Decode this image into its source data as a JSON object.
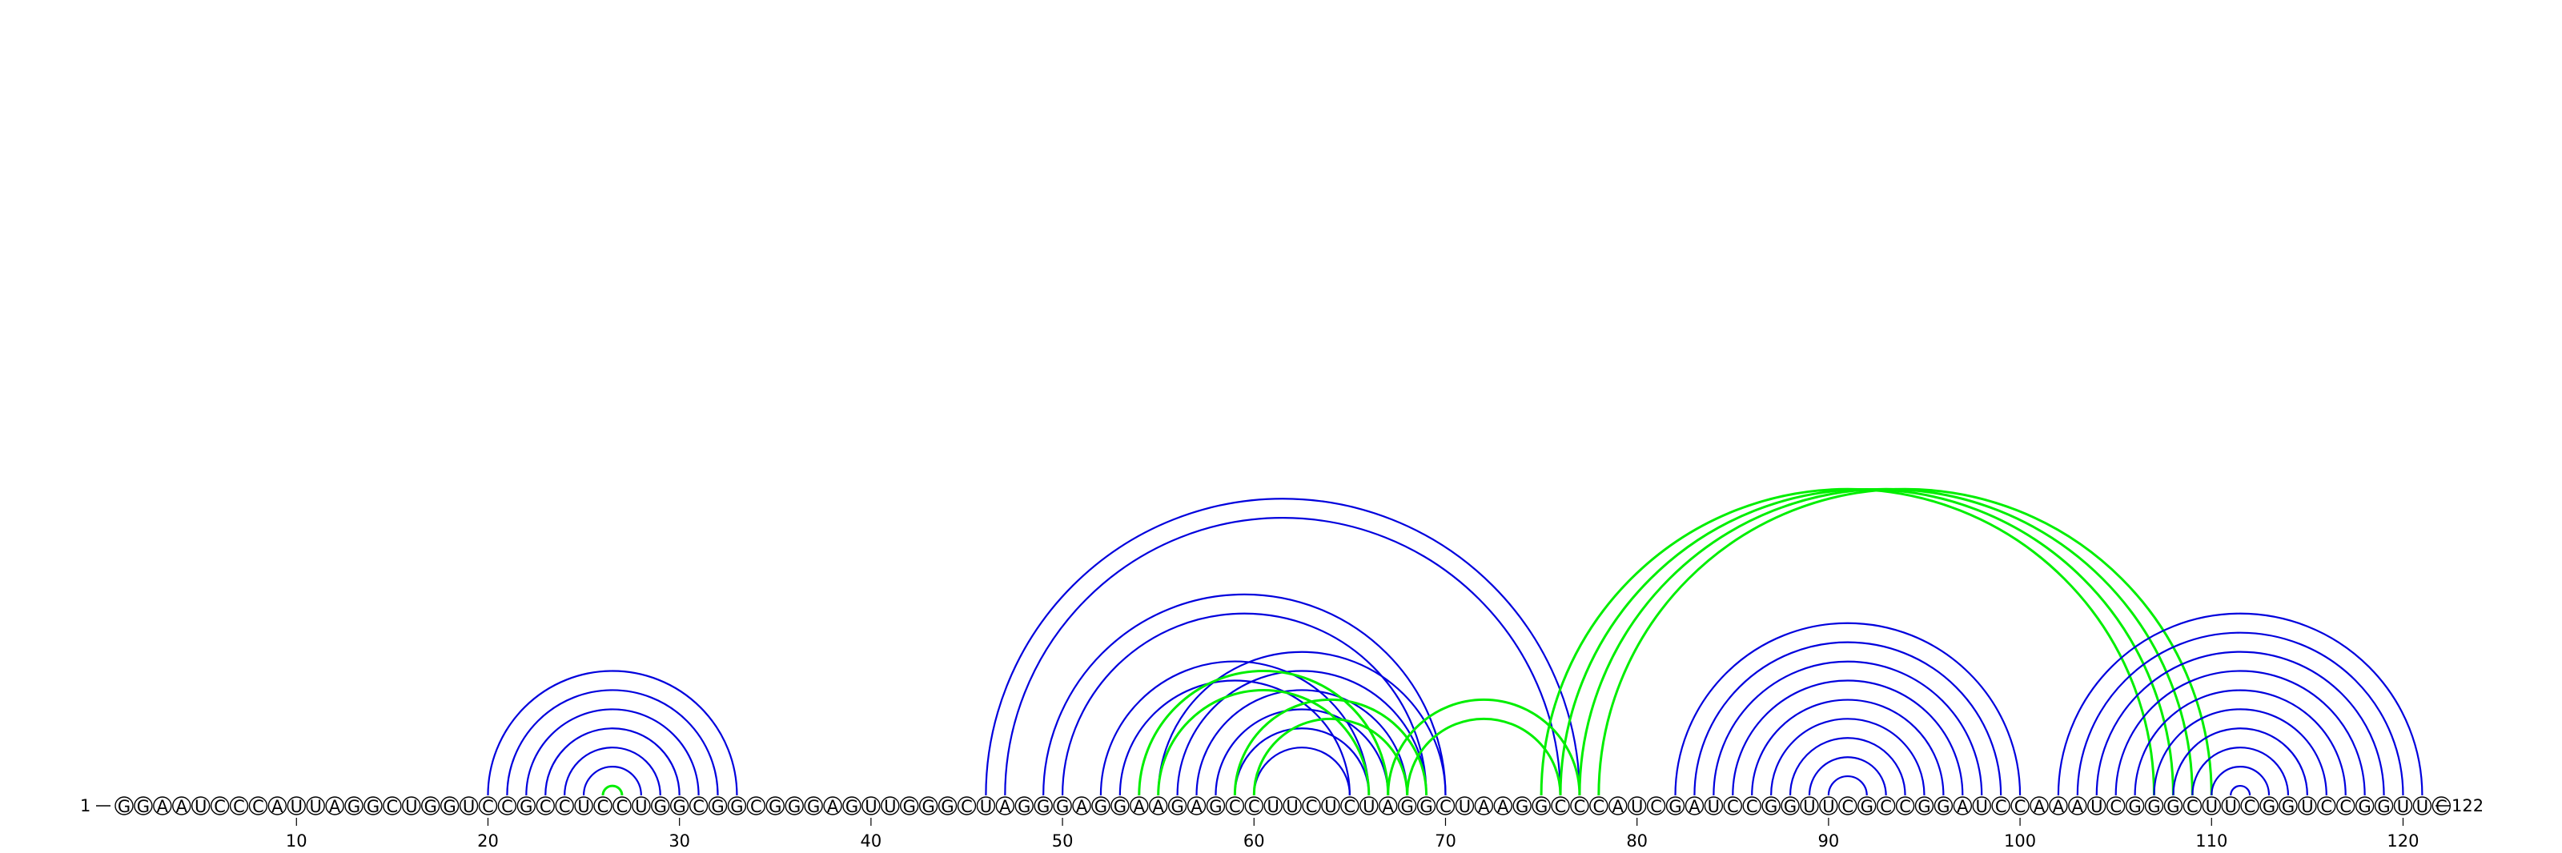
{
  "sequence": "GGAAUCCCAUUAGGCUGGUCCGCCUCCUGGCGGCGGGAGUUGGGCUAGGGAGGAAGAGCCUUCUCUAGGCUAAGGCCCAUCGAUCCGGUUCGCCGGAUCCAAAUCGGGCUUCGGUCCGGUUC",
  "start_label": "1",
  "end_label": "122",
  "tick_positions": [
    10,
    20,
    30,
    40,
    50,
    60,
    70,
    80,
    90,
    100,
    110,
    120
  ],
  "colors": {
    "primary_arcs": "#0000dd",
    "secondary_arcs": "#00ee00",
    "nucleotide_outline": "#000000",
    "background": "#ffffff"
  },
  "arc_groups": [
    {
      "color": "blue",
      "pairs": [
        [
          20,
          33
        ],
        [
          21,
          32
        ],
        [
          22,
          31
        ],
        [
          23,
          30
        ],
        [
          24,
          29
        ],
        [
          25,
          28
        ]
      ]
    },
    {
      "color": "green",
      "pairs": [
        [
          26,
          27
        ]
      ]
    },
    {
      "color": "blue",
      "pairs": [
        [
          46,
          77
        ],
        [
          47,
          76
        ]
      ]
    },
    {
      "color": "blue",
      "pairs": [
        [
          49,
          70
        ],
        [
          50,
          69
        ]
      ]
    },
    {
      "color": "blue",
      "pairs": [
        [
          55,
          70
        ],
        [
          56,
          69
        ],
        [
          57,
          68
        ],
        [
          58,
          67
        ],
        [
          59,
          66
        ],
        [
          60,
          65
        ]
      ]
    },
    {
      "color": "blue",
      "pairs": [
        [
          52,
          66
        ],
        [
          53,
          65
        ]
      ]
    },
    {
      "color": "green",
      "pairs": [
        [
          54,
          67
        ],
        [
          55,
          66
        ]
      ]
    },
    {
      "color": "green",
      "pairs": [
        [
          59,
          69
        ],
        [
          60,
          68
        ]
      ]
    },
    {
      "color": "green",
      "pairs": [
        [
          67,
          77
        ],
        [
          68,
          76
        ]
      ]
    },
    {
      "color": "green",
      "pairs": [
        [
          75,
          107
        ],
        [
          76,
          108
        ],
        [
          77,
          109
        ],
        [
          78,
          110
        ]
      ]
    },
    {
      "color": "blue",
      "pairs": [
        [
          82,
          100
        ],
        [
          83,
          99
        ],
        [
          84,
          98
        ],
        [
          85,
          97
        ],
        [
          86,
          96
        ],
        [
          87,
          95
        ],
        [
          88,
          94
        ],
        [
          89,
          93
        ],
        [
          90,
          92
        ]
      ]
    },
    {
      "color": "blue",
      "pairs": [
        [
          102,
          121
        ],
        [
          103,
          120
        ],
        [
          104,
          119
        ],
        [
          105,
          118
        ],
        [
          106,
          117
        ],
        [
          107,
          116
        ],
        [
          108,
          115
        ],
        [
          109,
          114
        ],
        [
          110,
          113
        ],
        [
          111,
          112
        ]
      ]
    }
  ]
}
